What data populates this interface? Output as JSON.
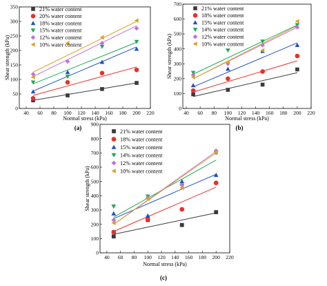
{
  "chart_data": [
    {
      "type": "scatter",
      "panel_label": "(a)",
      "xlabel": "Normal stress (kPa)",
      "ylabel": "Shear strength (kPa)",
      "xlim": [
        30,
        220
      ],
      "ylim": [
        0,
        350
      ],
      "xticks": [
        "40",
        "60",
        "80",
        "100",
        "120",
        "140",
        "160",
        "180",
        "200",
        "220"
      ],
      "yticks": [
        "0",
        "50",
        "100",
        "150",
        "200",
        "250",
        "300",
        "350"
      ],
      "legend_position": "top-left",
      "x": [
        50,
        100,
        150,
        200
      ],
      "series": [
        {
          "name": "21% water content",
          "marker": "square",
          "color": "#3a3a3a",
          "values": [
            28,
            45,
            67,
            88
          ],
          "fit": [
            [
              50,
              28
            ],
            [
              200,
              88
            ]
          ]
        },
        {
          "name": "20% water content",
          "marker": "circle",
          "color": "#e8302c",
          "values": [
            35,
            90,
            122,
            133
          ],
          "fit": [
            [
              50,
              45
            ],
            [
              200,
              143
            ]
          ]
        },
        {
          "name": "18% water content",
          "marker": "triangle-up",
          "color": "#1f4fc0",
          "values": [
            58,
            125,
            160,
            205
          ],
          "fit": [
            [
              50,
              60
            ],
            [
              200,
              212
            ]
          ]
        },
        {
          "name": "15% water content",
          "marker": "triangle-down",
          "color": "#1aaa55",
          "values": [
            90,
            110,
            213,
            230
          ],
          "fit": [
            [
              50,
              85
            ],
            [
              200,
              228
            ]
          ]
        },
        {
          "name": "12% water content",
          "marker": "diamond",
          "color": "#c070e0",
          "values": [
            118,
            162,
            225,
            276
          ],
          "fit": [
            [
              50,
              110
            ],
            [
              200,
              285
            ]
          ]
        },
        {
          "name": "10% water content",
          "marker": "triangle-left",
          "color": "#e0a020",
          "values": [
            108,
            225,
            245,
            303
          ],
          "fit": [
            [
              50,
              125
            ],
            [
              200,
              300
            ]
          ]
        }
      ]
    },
    {
      "type": "scatter",
      "panel_label": "(b)",
      "xlabel": "Normal stress (kPa)",
      "ylabel": "Shear strength (kPa)",
      "xlim": [
        35,
        220
      ],
      "ylim": [
        0,
        700
      ],
      "xticks": [
        "40",
        "60",
        "80",
        "100",
        "120",
        "140",
        "160",
        "180",
        "200",
        "220"
      ],
      "yticks": [
        "0",
        "100",
        "200",
        "300",
        "400",
        "500",
        "600",
        "700"
      ],
      "legend_position": "top-left",
      "x": [
        50,
        100,
        150,
        200
      ],
      "series": [
        {
          "name": "21% water content",
          "marker": "square",
          "color": "#3a3a3a",
          "values": [
            95,
            125,
            160,
            262
          ],
          "fit": [
            [
              50,
              80
            ],
            [
              200,
              240
            ]
          ]
        },
        {
          "name": "18% water content",
          "marker": "circle",
          "color": "#e8302c",
          "values": [
            120,
            200,
            248,
            352
          ],
          "fit": [
            [
              50,
              110
            ],
            [
              200,
              320
            ]
          ]
        },
        {
          "name": "15% water content",
          "marker": "triangle-up",
          "color": "#1f4fc0",
          "values": [
            155,
            265,
            385,
            425
          ],
          "fit": [
            [
              50,
              145
            ],
            [
              200,
              440
            ]
          ]
        },
        {
          "name": "14% water content",
          "marker": "triangle-down",
          "color": "#1aaa55",
          "values": [
            240,
            390,
            450,
            560
          ],
          "fit": [
            [
              50,
              230
            ],
            [
              200,
              560
            ]
          ]
        },
        {
          "name": "12% water content",
          "marker": "diamond",
          "color": "#c070e0",
          "values": [
            225,
            300,
            425,
            545
          ],
          "fit": [
            [
              50,
              200
            ],
            [
              200,
              545
            ]
          ]
        },
        {
          "name": "10% water content",
          "marker": "triangle-left",
          "color": "#e0a020",
          "values": [
            210,
            310,
            390,
            585
          ],
          "fit": [
            [
              50,
              200
            ],
            [
              200,
              555
            ]
          ]
        }
      ]
    },
    {
      "type": "scatter",
      "panel_label": "(c)",
      "xlabel": "Normal stress (kPa)",
      "ylabel": "Shear strength (kPa)",
      "xlim": [
        30,
        220
      ],
      "ylim": [
        0,
        900
      ],
      "xticks": [
        "40",
        "60",
        "80",
        "100",
        "120",
        "140",
        "160",
        "180",
        "200",
        "220"
      ],
      "yticks": [
        "0",
        "100",
        "200",
        "300",
        "400",
        "500",
        "600",
        "700",
        "800",
        "900"
      ],
      "legend_position": "top-left",
      "x": [
        50,
        100,
        150,
        200
      ],
      "series": [
        {
          "name": "21% water content",
          "marker": "square",
          "color": "#3a3a3a",
          "values": [
            115,
            230,
            195,
            285
          ],
          "fit": [
            [
              50,
              130
            ],
            [
              200,
              280
            ]
          ]
        },
        {
          "name": "18% water content",
          "marker": "circle",
          "color": "#e8302c",
          "values": [
            145,
            235,
            305,
            490
          ],
          "fit": [
            [
              50,
              150
            ],
            [
              200,
              460
            ]
          ]
        },
        {
          "name": "15% water content",
          "marker": "triangle-up",
          "color": "#1f4fc0",
          "values": [
            275,
            260,
            500,
            545
          ],
          "fit": [
            [
              50,
              240
            ],
            [
              200,
              550
            ]
          ]
        },
        {
          "name": "14% water content",
          "marker": "triangle-down",
          "color": "#1aaa55",
          "values": [
            325,
            395,
            470,
            700
          ],
          "fit": [
            [
              50,
              250
            ],
            [
              200,
              650
            ]
          ]
        },
        {
          "name": "12% water content",
          "marker": "diamond",
          "color": "#c070e0",
          "values": [
            230,
            385,
            475,
            715
          ],
          "fit": [
            [
              50,
              200
            ],
            [
              200,
              710
            ]
          ]
        },
        {
          "name": "10% water content",
          "marker": "triangle-left",
          "color": "#e0a020",
          "values": [
            210,
            380,
            455,
            705
          ],
          "fit": [
            [
              50,
              200
            ],
            [
              200,
              700
            ]
          ]
        }
      ]
    }
  ]
}
